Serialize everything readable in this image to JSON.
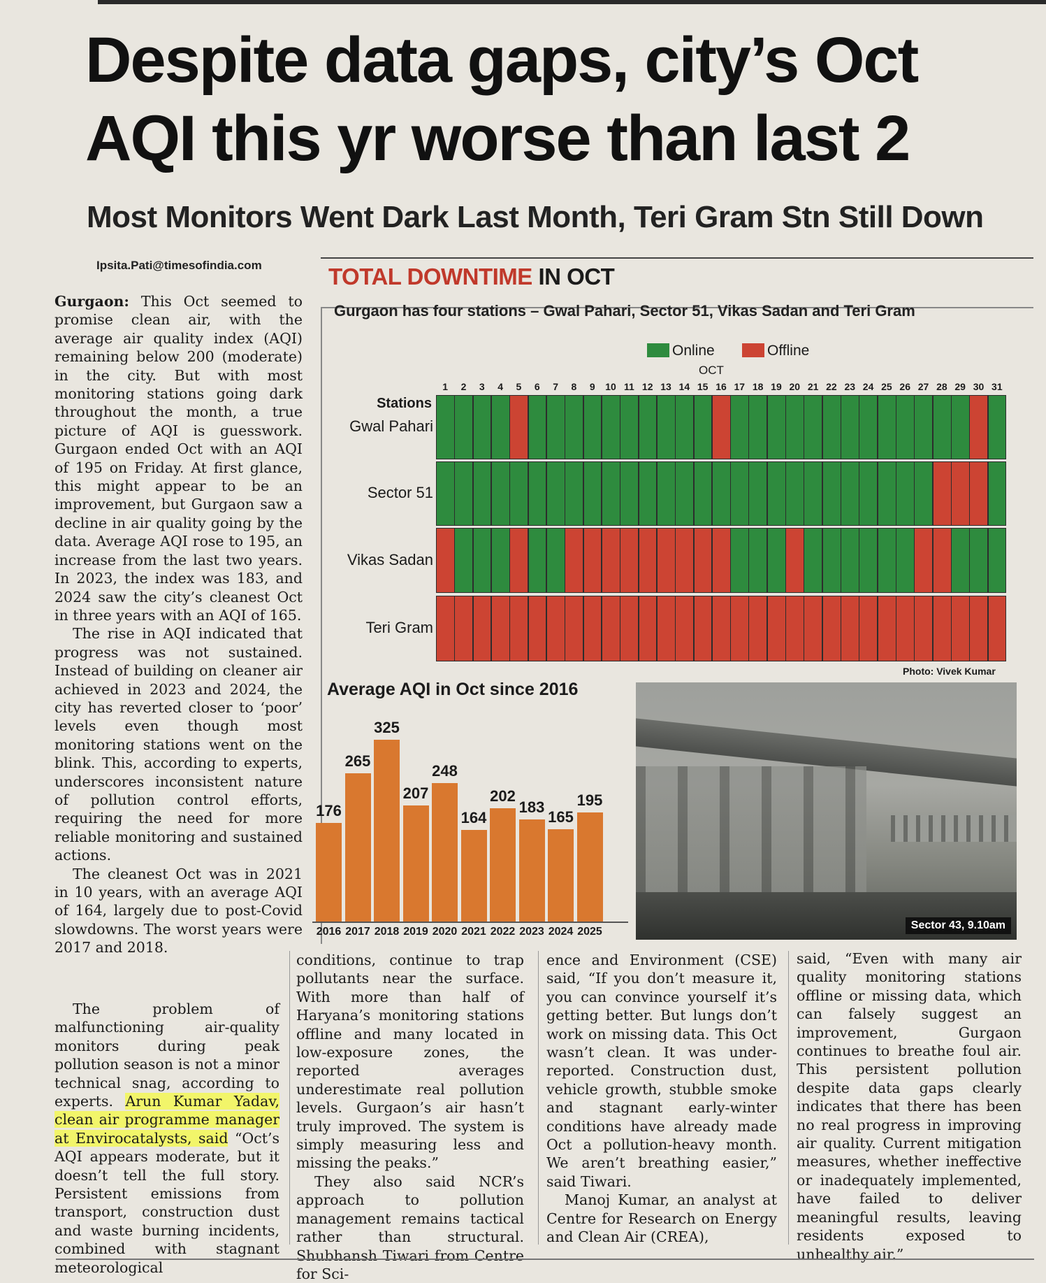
{
  "article": {
    "headline": "Despite data gaps, city’s Oct AQI this yr worse than last 2",
    "subhead": "Most Monitors Went Dark Last Month, Teri Gram Stn Still Down",
    "byline": "Ipsita.Pati@timesofindia.com"
  },
  "body": {
    "p1_lead": "Gurgaon:",
    "p1": " This Oct seemed to promise clean air, with the average air quality index (AQI) remaining below 200 (moderate) in the city. But with most monitoring stations going dark throughout the month, a true picture of AQI is guesswork. Gurgaon ended Oct with an AQI of 195 on Friday. At first glance, this might appear to be an improvement, but Gurgaon saw a decline in air quality going by the data. Average AQI rose to 195, an increase from the last two years. In 2023, the index was 183, and 2024 saw the city’s cleanest Oct in three years with an AQI of 165.",
    "p2": "The rise in AQI indicated that progress was not sustained. Instead of building on cleaner air achieved in 2023 and 2024, the city has reverted closer to ‘poor’ levels even though most monitoring stations went on the blink. This, according to experts, underscores inconsistent nature of pollution control efforts, requiring the need for more reliable monitoring and sustained actions.",
    "p3": "The cleanest Oct was in 2021 in 10 years, with an average AQI of 164, largely due to post-Covid slowdowns. The worst years were 2017 and 2018.",
    "p4_a": "The problem of malfunctioning air-quality monitors during peak pollution season is not a minor technical snag, according to experts. ",
    "p4_hl": "Arun Kumar Yadav, clean air programme manager at Envirocatalysts, said",
    "p4_b": " “Oct’s AQI appears moderate, but it doesn’t tell the full story. Persistent emissions from transport, construction dust and waste burning incidents, combined with stagnant meteorological",
    "col2_p1": "conditions, continue to trap pollutants near the surface. With more than half of Haryana’s monitoring stations offline and many located in low-exposure zones, the reported averages underestimate real pollution levels. Gurgaon’s air hasn’t truly improved. The system is simply measuring less and missing the peaks.”",
    "col2_p2": "They also said NCR’s approach to pollution management remains tactical rather than structural. Shubhansh Tiwari from Centre for Sci-",
    "col3_p1": "ence and Environment (CSE) said, “If you don’t measure it, you can convince yourself it’s getting better. But lungs don’t work on missing data. This Oct wasn’t clean. It was under-reported. Construction dust, vehicle growth, stubble smoke and stagnant early-winter conditions have already made Oct a pollution-heavy month. We aren’t breathing easier,” said Tiwari.",
    "col3_p2": "Manoj Kumar, an analyst at Centre for Research on Energy and Clean Air (CREA),",
    "col4_p1": "said, “Even with many air quality monitoring stations offline or missing data, which can falsely suggest an improvement, Gurgaon continues to breathe foul air. This persistent pollution despite data gaps clearly indicates that there has been no real progress in improving air quality. Current mitigation measures, whether ineffective or inadequately implemented, have failed to deliver meaningful results, leaving residents exposed to unhealthy air.”"
  },
  "graphic": {
    "title_red": "TOTAL DOWNTIME",
    "title_black": " IN OCT",
    "note": "Gurgaon has four stations – Gwal Pahari, Sector 51, Vikas Sadan and Teri Gram",
    "legend_online": "Online",
    "legend_offline": "Offline",
    "month_label": "OCT",
    "stations_header": "Stations",
    "colors": {
      "online": "#2e8b3e",
      "offline": "#cc4433",
      "bar": "#d9782f"
    },
    "days": [
      "1",
      "2",
      "3",
      "4",
      "5",
      "6",
      "7",
      "8",
      "9",
      "10",
      "11",
      "12",
      "13",
      "14",
      "15",
      "16",
      "17",
      "18",
      "19",
      "20",
      "21",
      "22",
      "23",
      "24",
      "25",
      "26",
      "27",
      "28",
      "29",
      "30",
      "31"
    ],
    "stations": [
      {
        "name": "Gwal Pahari",
        "status": "1111011111111110111111111111101"
      },
      {
        "name": "Sector 51",
        "status": "1111111111111111111111111110001"
      },
      {
        "name": "Vikas Sadan",
        "status": "0111011000000000111011111100111"
      },
      {
        "name": "Teri Gram",
        "status": "0000000000000000000000000000000"
      }
    ]
  },
  "chart_data": {
    "type": "bar",
    "title": "Average AQI in Oct since 2016",
    "categories": [
      "2016",
      "2017",
      "2018",
      "2019",
      "2020",
      "2021",
      "2022",
      "2023",
      "2024",
      "2025"
    ],
    "values": [
      176,
      265,
      325,
      207,
      248,
      164,
      202,
      183,
      165,
      195
    ],
    "xlabel": "",
    "ylabel": ""
  },
  "photo": {
    "credit": "Photo: Vivek Kumar",
    "caption": "Sector 43, 9.10am"
  }
}
